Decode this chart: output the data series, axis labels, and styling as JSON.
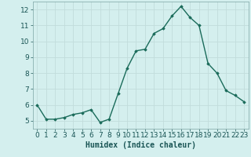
{
  "x": [
    0,
    1,
    2,
    3,
    4,
    5,
    6,
    7,
    8,
    9,
    10,
    11,
    12,
    13,
    14,
    15,
    16,
    17,
    18,
    19,
    20,
    21,
    22,
    23
  ],
  "y": [
    6.0,
    5.1,
    5.1,
    5.2,
    5.4,
    5.5,
    5.7,
    4.9,
    5.1,
    6.7,
    8.3,
    9.4,
    9.5,
    10.5,
    10.8,
    11.6,
    12.2,
    11.5,
    11.0,
    8.6,
    8.0,
    6.9,
    6.6,
    6.2
  ],
  "line_color": "#1a6b5a",
  "marker": "D",
  "marker_size": 1.8,
  "linewidth": 1.0,
  "xlabel": "Humidex (Indice chaleur)",
  "xlabel_fontsize": 7,
  "xlim": [
    -0.5,
    23.5
  ],
  "ylim": [
    4.5,
    12.5
  ],
  "yticks": [
    5,
    6,
    7,
    8,
    9,
    10,
    11,
    12
  ],
  "xticks": [
    0,
    1,
    2,
    3,
    4,
    5,
    6,
    7,
    8,
    9,
    10,
    11,
    12,
    13,
    14,
    15,
    16,
    17,
    18,
    19,
    20,
    21,
    22,
    23
  ],
  "background_color": "#d4efee",
  "grid_color": "#c2dcdb",
  "tick_label_fontsize": 6.5,
  "spine_color": "#8ab0b0"
}
